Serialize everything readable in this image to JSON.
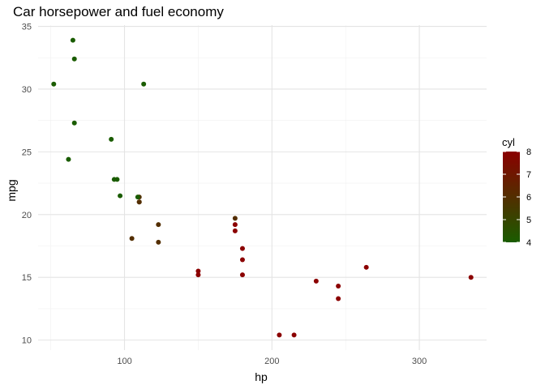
{
  "chart_data": {
    "type": "scatter",
    "title": "Car horsepower and fuel economy",
    "xlabel": "hp",
    "ylabel": "mpg",
    "xlim": [
      41.4,
      345.6
    ],
    "ylim": [
      9.2,
      35.1
    ],
    "x_ticks": [
      100,
      200,
      300
    ],
    "x_minor_ticks": [
      50,
      150,
      250
    ],
    "y_ticks": [
      10,
      15,
      20,
      25,
      30,
      35
    ],
    "grid": true,
    "legend": {
      "title": "cyl",
      "type": "colorbar",
      "placement": "right",
      "range": [
        4,
        8
      ],
      "ticks": [
        4,
        5,
        6,
        7,
        8
      ],
      "low_color": "#1a5c00",
      "high_color": "#8b0000"
    },
    "points": [
      {
        "x": 110,
        "y": 21.0,
        "cyl": 6
      },
      {
        "x": 110,
        "y": 21.0,
        "cyl": 6
      },
      {
        "x": 93,
        "y": 22.8,
        "cyl": 4
      },
      {
        "x": 110,
        "y": 21.4,
        "cyl": 6
      },
      {
        "x": 175,
        "y": 18.7,
        "cyl": 8
      },
      {
        "x": 105,
        "y": 18.1,
        "cyl": 6
      },
      {
        "x": 245,
        "y": 14.3,
        "cyl": 8
      },
      {
        "x": 62,
        "y": 24.4,
        "cyl": 4
      },
      {
        "x": 95,
        "y": 22.8,
        "cyl": 4
      },
      {
        "x": 123,
        "y": 19.2,
        "cyl": 6
      },
      {
        "x": 123,
        "y": 17.8,
        "cyl": 6
      },
      {
        "x": 180,
        "y": 16.4,
        "cyl": 8
      },
      {
        "x": 180,
        "y": 17.3,
        "cyl": 8
      },
      {
        "x": 180,
        "y": 15.2,
        "cyl": 8
      },
      {
        "x": 205,
        "y": 10.4,
        "cyl": 8
      },
      {
        "x": 215,
        "y": 10.4,
        "cyl": 8
      },
      {
        "x": 230,
        "y": 14.7,
        "cyl": 8
      },
      {
        "x": 66,
        "y": 32.4,
        "cyl": 4
      },
      {
        "x": 52,
        "y": 30.4,
        "cyl": 4
      },
      {
        "x": 65,
        "y": 33.9,
        "cyl": 4
      },
      {
        "x": 97,
        "y": 21.5,
        "cyl": 4
      },
      {
        "x": 150,
        "y": 15.5,
        "cyl": 8
      },
      {
        "x": 150,
        "y": 15.2,
        "cyl": 8
      },
      {
        "x": 245,
        "y": 13.3,
        "cyl": 8
      },
      {
        "x": 175,
        "y": 19.2,
        "cyl": 8
      },
      {
        "x": 66,
        "y": 27.3,
        "cyl": 4
      },
      {
        "x": 91,
        "y": 26.0,
        "cyl": 4
      },
      {
        "x": 113,
        "y": 30.4,
        "cyl": 4
      },
      {
        "x": 264,
        "y": 15.8,
        "cyl": 8
      },
      {
        "x": 175,
        "y": 19.7,
        "cyl": 6
      },
      {
        "x": 335,
        "y": 15.0,
        "cyl": 8
      },
      {
        "x": 109,
        "y": 21.4,
        "cyl": 4
      }
    ]
  }
}
